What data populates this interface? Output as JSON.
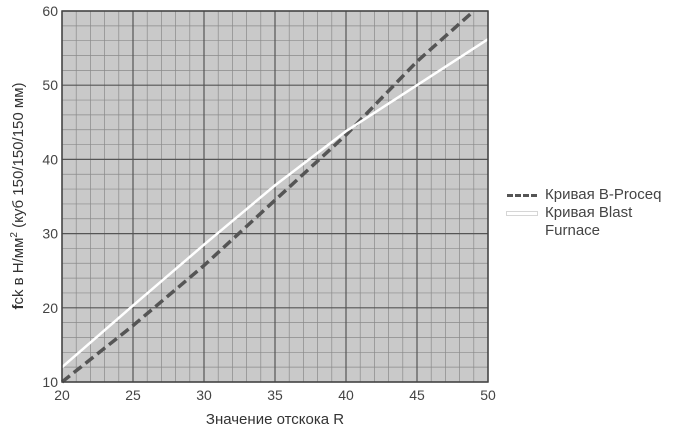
{
  "chart_data": {
    "type": "line",
    "xlabel": "Значение отскока R",
    "ylabel_prefix_bold": "f",
    "ylabel_main": "ck в Н/мм",
    "ylabel_sup": "2",
    "ylabel_tail": " (куб 150/150/150 мм)",
    "xlim": [
      20,
      50
    ],
    "ylim": [
      10,
      60
    ],
    "x_ticks": [
      20,
      25,
      30,
      35,
      40,
      45,
      50
    ],
    "y_ticks": [
      10,
      20,
      30,
      40,
      50,
      60
    ],
    "grid": true,
    "plot_background": "#c9c9c9",
    "legend_position": "right",
    "series": [
      {
        "name": "Кривая B-Proceq",
        "style": "dashed",
        "color": "#555555",
        "x": [
          20,
          25,
          30,
          35,
          40,
          45,
          49
        ],
        "y": [
          10,
          17.6,
          25.7,
          34.5,
          43.3,
          53.2,
          60
        ]
      },
      {
        "name": "Кривая Blast Furnace",
        "style": "solid",
        "color": "#ffffff",
        "x": [
          20,
          25,
          30,
          35,
          40,
          45,
          50
        ],
        "y": [
          12,
          20.3,
          28.5,
          36.5,
          43.8,
          50,
          56.2
        ]
      }
    ]
  },
  "legend": {
    "item1": "Кривая B-Proceq",
    "item2_line1": "Кривая Blast",
    "item2_line2": "Furnace"
  }
}
